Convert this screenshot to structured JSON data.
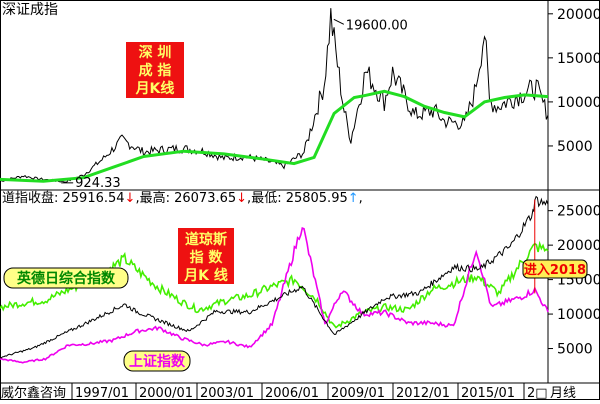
{
  "chart_data": [
    {
      "type": "line",
      "title": "深证成指",
      "annotation_box": [
        "深 圳",
        "成 指",
        "月K线"
      ],
      "peak_label": "19600.00",
      "low_label": "924.33",
      "y_ticks": [
        5000,
        10000,
        15000,
        20000
      ],
      "ylim": [
        0,
        21000
      ],
      "xlim": [
        "1991/04",
        "2018/08"
      ],
      "series": [
        {
          "kind": "monthly-candlestick",
          "color": "#000000",
          "points": [
            [
              "1991/04",
              1000
            ],
            [
              "1992/06",
              1600
            ],
            [
              "1993/02",
              1300
            ],
            [
              "1994/07",
              924.33
            ],
            [
              "1995/06",
              1700
            ],
            [
              "1996/06",
              3600
            ],
            [
              "1997/05",
              5700
            ],
            [
              "1998/06",
              4300
            ],
            [
              "1999/06",
              4600
            ],
            [
              "2000/06",
              4700
            ],
            [
              "2001/06",
              4400
            ],
            [
              "2002/06",
              3600
            ],
            [
              "2003/06",
              3800
            ],
            [
              "2004/06",
              3400
            ],
            [
              "2005/06",
              2700
            ],
            [
              "2006/06",
              4300
            ],
            [
              "2007/06",
              12000
            ],
            [
              "2007/10",
              19600
            ],
            [
              "2008/06",
              9000
            ],
            [
              "2008/10",
              5700
            ],
            [
              "2009/07",
              13500
            ],
            [
              "2010/06",
              10000
            ],
            [
              "2010/11",
              13300
            ],
            [
              "2011/12",
              8500
            ],
            [
              "2012/12",
              9000
            ],
            [
              "2013/06",
              7800
            ],
            [
              "2014/06",
              7500
            ],
            [
              "2014/12",
              11000
            ],
            [
              "2015/06",
              18000
            ],
            [
              "2015/09",
              10000
            ],
            [
              "2016/02",
              9500
            ],
            [
              "2017/11",
              11500
            ],
            [
              "2018/01",
              11600
            ],
            [
              "2018/08",
              8500
            ]
          ]
        },
        {
          "kind": "moving-average",
          "color": "#22dd22",
          "points": [
            [
              "1991/04",
              1200
            ],
            [
              "1993/06",
              1000
            ],
            [
              "1995/06",
              1400
            ],
            [
              "1996/12",
              2600
            ],
            [
              "1998/06",
              3800
            ],
            [
              "2000/06",
              4400
            ],
            [
              "2002/06",
              4100
            ],
            [
              "2004/06",
              3500
            ],
            [
              "2005/12",
              3000
            ],
            [
              "2006/12",
              3700
            ],
            [
              "2007/12",
              8700
            ],
            [
              "2008/12",
              10500
            ],
            [
              "2009/06",
              10700
            ],
            [
              "2010/06",
              11200
            ],
            [
              "2011/06",
              10600
            ],
            [
              "2012/06",
              9500
            ],
            [
              "2013/06",
              8800
            ],
            [
              "2014/06",
              8300
            ],
            [
              "2015/06",
              10000
            ],
            [
              "2016/06",
              10500
            ],
            [
              "2017/06",
              10800
            ],
            [
              "2018/08",
              10600
            ]
          ]
        }
      ]
    },
    {
      "type": "line",
      "info_bar": {
        "close_label": "道指收盘: ",
        "close_value": "25916.54",
        "high_label": "最高: ",
        "high_value": "26073.65",
        "low_label": "最低: ",
        "low_value": "25805.95",
        "down_arrow": "↓",
        "up_arrow": "↑"
      },
      "annotation_box": [
        "道琼斯",
        "指  数",
        "月K 线"
      ],
      "legend_ftse": "英德日综合指数",
      "legend_sh": "上证指数",
      "entry_label": "进入2018",
      "y_ticks": [
        5000,
        10000,
        15000,
        20000,
        25000
      ],
      "ylim": [
        0,
        28000
      ],
      "xlim": [
        "1994/06",
        "2018/08"
      ],
      "series": [
        {
          "kind": "dow-jones-monthly",
          "color": "#000000",
          "points": [
            [
              "1994/06",
              3700
            ],
            [
              "1995/12",
              5100
            ],
            [
              "1997/01",
              6800
            ],
            [
              "1998/06",
              9000
            ],
            [
              "1999/12",
              11400
            ],
            [
              "2000/06",
              10400
            ],
            [
              "2001/09",
              8800
            ],
            [
              "2002/10",
              7500
            ],
            [
              "2003/12",
              10400
            ],
            [
              "2005/06",
              10300
            ],
            [
              "2007/10",
              14000
            ],
            [
              "2009/03",
              7000
            ],
            [
              "2010/06",
              10000
            ],
            [
              "2011/06",
              12400
            ],
            [
              "2012/12",
              13100
            ],
            [
              "2014/06",
              16800
            ],
            [
              "2015/08",
              16500
            ],
            [
              "2016/12",
              19800
            ],
            [
              "2017/12",
              24700
            ],
            [
              "2018/01",
              26600
            ],
            [
              "2018/08",
              25900
            ]
          ]
        },
        {
          "kind": "composite",
          "name": "英德日综合指数",
          "color": "#44ee00",
          "points": [
            [
              "1994/06",
              11000
            ],
            [
              "1995/06",
              11600
            ],
            [
              "1996/06",
              12000
            ],
            [
              "1997/06",
              13500
            ],
            [
              "1998/06",
              14800
            ],
            [
              "1999/12",
              18000
            ],
            [
              "2000/06",
              16500
            ],
            [
              "2001/06",
              13800
            ],
            [
              "2002/06",
              11800
            ],
            [
              "2003/03",
              10600
            ],
            [
              "2004/06",
              12000
            ],
            [
              "2005/06",
              12700
            ],
            [
              "2006/06",
              14000
            ],
            [
              "2007/06",
              15000
            ],
            [
              "2008/06",
              12000
            ],
            [
              "2009/03",
              8000
            ],
            [
              "2010/06",
              10200
            ],
            [
              "2011/06",
              11000
            ],
            [
              "2012/06",
              10600
            ],
            [
              "2013/06",
              13500
            ],
            [
              "2014/06",
              14500
            ],
            [
              "2015/06",
              15500
            ],
            [
              "2016/06",
              13000
            ],
            [
              "2017/06",
              17500
            ],
            [
              "2018/01",
              19800
            ],
            [
              "2018/08",
              19200
            ]
          ]
        },
        {
          "kind": "shanghai",
          "name": "上证指数",
          "color": "#ee00ee",
          "points": [
            [
              "1994/06",
              3500
            ],
            [
              "1995/06",
              3000
            ],
            [
              "1996/06",
              3500
            ],
            [
              "1997/06",
              5500
            ],
            [
              "1998/06",
              5700
            ],
            [
              "1999/06",
              6200
            ],
            [
              "2000/06",
              7500
            ],
            [
              "2001/06",
              8000
            ],
            [
              "2002/06",
              6500
            ],
            [
              "2003/06",
              5500
            ],
            [
              "2004/06",
              6000
            ],
            [
              "2005/06",
              5200
            ],
            [
              "2006/06",
              8500
            ],
            [
              "2007/10",
              23000
            ],
            [
              "2008/10",
              8500
            ],
            [
              "2009/07",
              13500
            ],
            [
              "2010/06",
              10000
            ],
            [
              "2011/06",
              10200
            ],
            [
              "2012/06",
              8700
            ],
            [
              "2013/06",
              8700
            ],
            [
              "2014/06",
              8300
            ],
            [
              "2015/06",
              19500
            ],
            [
              "2016/02",
              11000
            ],
            [
              "2017/06",
              12500
            ],
            [
              "2018/01",
              13500
            ],
            [
              "2018/08",
              10300
            ]
          ]
        }
      ]
    }
  ],
  "x_axis": {
    "source": "威尔鑫咨询",
    "labels": [
      "1997/01",
      "2000/01",
      "2003/01",
      "2006/01",
      "2009/01",
      "2012/01",
      "2015/01",
      "2□"
    ],
    "unit": "月线"
  }
}
